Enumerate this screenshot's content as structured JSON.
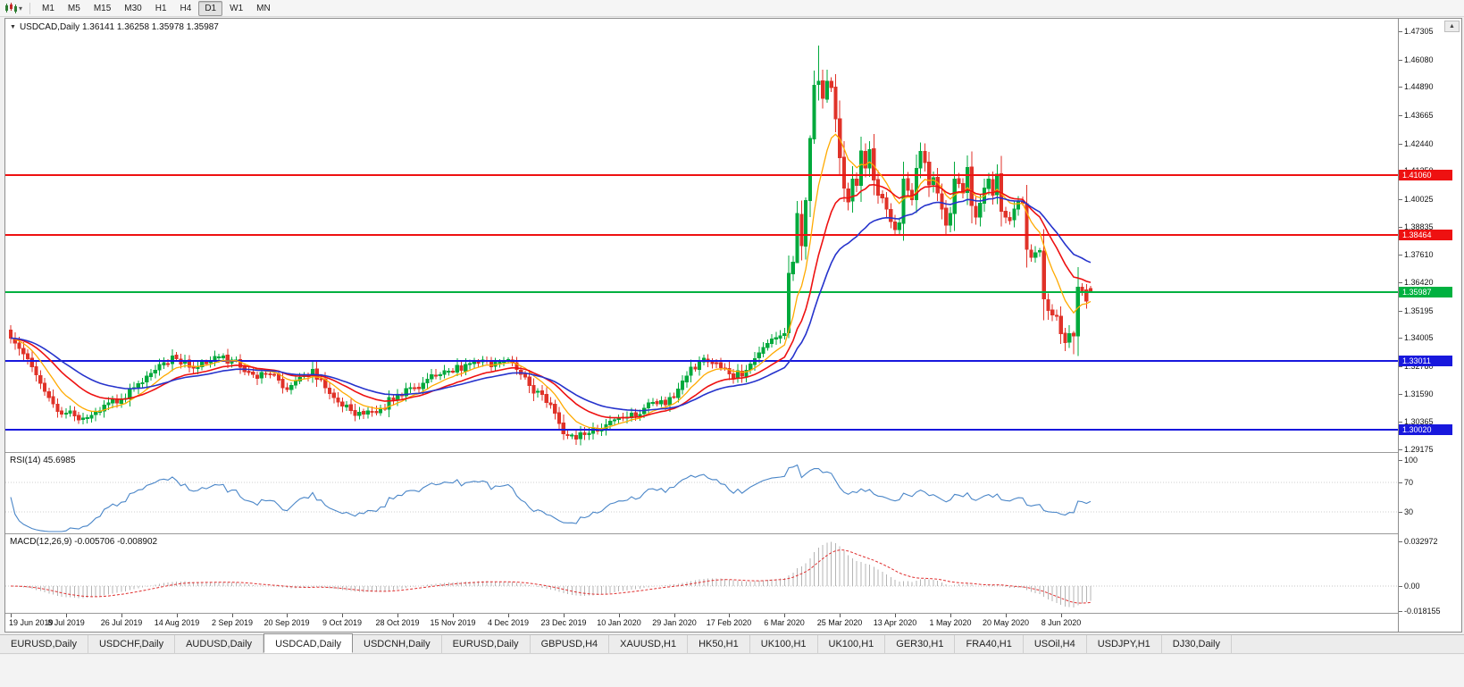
{
  "toolbar": {
    "timeframes": [
      "M1",
      "M5",
      "M15",
      "M30",
      "H1",
      "H4",
      "D1",
      "W1",
      "MN"
    ],
    "active_timeframe": "D1"
  },
  "chart_header": {
    "title": "USDCAD,Daily 1.36141 1.36258 1.35978 1.35987"
  },
  "indicators": {
    "rsi_label": "RSI(14) 45.6985",
    "macd_label": "MACD(12,26,9) -0.005706 -0.008902"
  },
  "scroll_up_glyph": "▲",
  "title_triangle_glyph": "▼",
  "caret_glyph": "▾",
  "tabs": {
    "items": [
      "EURUSD,Daily",
      "USDCHF,Daily",
      "AUDUSD,Daily",
      "USDCAD,Daily",
      "USDCNH,Daily",
      "EURUSD,Daily",
      "GBPUSD,H4",
      "XAUUSD,H1",
      "HK50,H1",
      "UK100,H1",
      "UK100,H1",
      "GER30,H1",
      "FRA40,H1",
      "USOil,H4",
      "USDJPY,H1",
      "DJ30,Daily"
    ],
    "active_index": 3
  },
  "chart_data": {
    "type": "candlestick",
    "symbol": "USDCAD",
    "timeframe": "Daily",
    "last_bar": {
      "open": 1.36141,
      "high": 1.36258,
      "low": 1.35978,
      "close": 1.35987
    },
    "bar_count": 255,
    "bars_per_label": 13,
    "candle_up_color": "#00a93c",
    "candle_down_color": "#e03228",
    "price_axis": {
      "top": 1.47305,
      "bottom": 1.29175,
      "ticks": [
        "1.47305",
        "1.46080",
        "1.44890",
        "1.43665",
        "1.42440",
        "1.41250",
        "1.40025",
        "1.38835",
        "1.37610",
        "1.36420",
        "1.35195",
        "1.34005",
        "1.32780",
        "1.31590",
        "1.30365",
        "1.29175"
      ]
    },
    "time_axis": [
      "19 Jun 2019",
      "8 Jul 2019",
      "26 Jul 2019",
      "14 Aug 2019",
      "2 Sep 2019",
      "20 Sep 2019",
      "9 Oct 2019",
      "28 Oct 2019",
      "15 Nov 2019",
      "4 Dec 2019",
      "23 Dec 2019",
      "10 Jan 2020",
      "29 Jan 2020",
      "17 Feb 2020",
      "6 Mar 2020",
      "25 Mar 2020",
      "13 Apr 2020",
      "1 May 2020",
      "20 May 2020",
      "8 Jun 2020"
    ],
    "levels": [
      {
        "price": 1.4106,
        "label": "1.41060",
        "color": "#ee1111",
        "role": "resistance"
      },
      {
        "price": 1.38464,
        "label": "1.38464",
        "color": "#ee1111",
        "role": "resistance"
      },
      {
        "price": 1.35987,
        "label": "1.35987",
        "color": "#00b140",
        "role": "current-price"
      },
      {
        "price": 1.33011,
        "label": "1.33011",
        "color": "#1818dd",
        "role": "support"
      },
      {
        "price": 1.3002,
        "label": "1.30020",
        "color": "#1818dd",
        "role": "support"
      }
    ],
    "moving_averages": [
      {
        "period": 9,
        "color": "#ffaa00",
        "width": 1.3
      },
      {
        "period": 20,
        "color": "#ee1111",
        "width": 1.6
      },
      {
        "period": 34,
        "color": "#2633cc",
        "width": 1.6
      }
    ],
    "rsi": {
      "period": 14,
      "value": 45.6985,
      "color": "#4a86c8",
      "axis_ticks": [
        "100",
        "70",
        "30"
      ],
      "level_lines": [
        70,
        30
      ]
    },
    "macd": {
      "fast": 12,
      "slow": 26,
      "signal": 9,
      "value": -0.005706,
      "signal_value": -0.008902,
      "axis_ticks": [
        "0.032972",
        "0.00",
        "-0.018155"
      ],
      "hist_color": "#b4b4b4",
      "signal_color": "#e03030"
    },
    "close_waypoints": [
      [
        0,
        1.34
      ],
      [
        2,
        1.3355
      ],
      [
        4,
        1.331
      ],
      [
        6,
        1.324
      ],
      [
        8,
        1.317
      ],
      [
        10,
        1.3115
      ],
      [
        13,
        1.3075
      ],
      [
        16,
        1.3045
      ],
      [
        19,
        1.3065
      ],
      [
        22,
        1.311
      ],
      [
        26,
        1.3135
      ],
      [
        29,
        1.3185
      ],
      [
        32,
        1.3235
      ],
      [
        35,
        1.3285
      ],
      [
        39,
        1.331
      ],
      [
        42,
        1.3275
      ],
      [
        45,
        1.3295
      ],
      [
        48,
        1.332
      ],
      [
        52,
        1.3305
      ],
      [
        55,
        1.3255
      ],
      [
        58,
        1.3225
      ],
      [
        61,
        1.3245
      ],
      [
        64,
        1.3185
      ],
      [
        68,
        1.323
      ],
      [
        71,
        1.3265
      ],
      [
        74,
        1.3185
      ],
      [
        78,
        1.3105
      ],
      [
        81,
        1.3065
      ],
      [
        84,
        1.3085
      ],
      [
        87,
        1.3095
      ],
      [
        91,
        1.3155
      ],
      [
        94,
        1.3185
      ],
      [
        97,
        1.3205
      ],
      [
        100,
        1.3235
      ],
      [
        104,
        1.3255
      ],
      [
        107,
        1.3285
      ],
      [
        110,
        1.3295
      ],
      [
        113,
        1.3275
      ],
      [
        116,
        1.33
      ],
      [
        119,
        1.3265
      ],
      [
        122,
        1.3195
      ],
      [
        125,
        1.3155
      ],
      [
        128,
        1.3075
      ],
      [
        130,
        1.2985
      ],
      [
        133,
        1.2962
      ],
      [
        136,
        1.2988
      ],
      [
        139,
        1.3005
      ],
      [
        143,
        1.3055
      ],
      [
        146,
        1.3075
      ],
      [
        149,
        1.3095
      ],
      [
        152,
        1.3115
      ],
      [
        156,
        1.3145
      ],
      [
        159,
        1.3235
      ],
      [
        162,
        1.3295
      ],
      [
        165,
        1.329
      ],
      [
        169,
        1.3245
      ],
      [
        172,
        1.3235
      ],
      [
        175,
        1.331
      ],
      [
        177,
        1.336
      ],
      [
        179,
        1.3395
      ],
      [
        181,
        1.341
      ],
      [
        182,
        1.342
      ],
      [
        183,
        1.368
      ],
      [
        184,
        1.373
      ],
      [
        185,
        1.394
      ],
      [
        186,
        1.38
      ],
      [
        187,
        1.3997
      ],
      [
        188,
        1.4265
      ],
      [
        189,
        1.4496
      ],
      [
        190,
        1.4513
      ],
      [
        191,
        1.444
      ],
      [
        192,
        1.4514
      ],
      [
        193,
        1.4486
      ],
      [
        194,
        1.435
      ],
      [
        195,
        1.4182
      ],
      [
        196,
        1.405
      ],
      [
        197,
        1.399
      ],
      [
        198,
        1.409
      ],
      [
        199,
        1.4062
      ],
      [
        200,
        1.4212
      ],
      [
        201,
        1.4138
      ],
      [
        202,
        1.4218
      ],
      [
        203,
        1.4085
      ],
      [
        204,
        1.402
      ],
      [
        205,
        1.4008
      ],
      [
        206,
        1.396
      ],
      [
        207,
        1.3905
      ],
      [
        208,
        1.387
      ],
      [
        209,
        1.39
      ],
      [
        210,
        1.409
      ],
      [
        211,
        1.404
      ],
      [
        212,
        1.4
      ],
      [
        213,
        1.4135
      ],
      [
        214,
        1.421
      ],
      [
        215,
        1.416
      ],
      [
        216,
        1.4065
      ],
      [
        217,
        1.4095
      ],
      [
        218,
        1.403
      ],
      [
        219,
        1.396
      ],
      [
        220,
        1.389
      ],
      [
        221,
        1.394
      ],
      [
        222,
        1.409
      ],
      [
        223,
        1.407
      ],
      [
        224,
        1.403
      ],
      [
        225,
        1.414
      ],
      [
        226,
        1.3975
      ],
      [
        227,
        1.3925
      ],
      [
        228,
        1.3985
      ],
      [
        229,
        1.405
      ],
      [
        230,
        1.409
      ],
      [
        231,
        1.402
      ],
      [
        232,
        1.411
      ],
      [
        233,
        1.395
      ],
      [
        234,
        1.3925
      ],
      [
        235,
        1.391
      ],
      [
        236,
        1.396
      ],
      [
        237,
        1.399
      ],
      [
        238,
        1.3985
      ],
      [
        239,
        1.3785
      ],
      [
        240,
        1.375
      ],
      [
        241,
        1.377
      ],
      [
        242,
        1.378
      ],
      [
        243,
        1.357
      ],
      [
        244,
        1.352
      ],
      [
        245,
        1.35
      ],
      [
        246,
        1.3495
      ],
      [
        247,
        1.342
      ],
      [
        248,
        1.338
      ],
      [
        249,
        1.342
      ],
      [
        250,
        1.341
      ],
      [
        251,
        1.362
      ],
      [
        252,
        1.3605
      ],
      [
        253,
        1.356
      ],
      [
        254,
        1.35987
      ]
    ],
    "wick_overrides": {
      "183": [
        1.3758,
        1.34
      ],
      "185": [
        1.3995,
        1.3727
      ],
      "187": [
        1.401,
        1.374
      ],
      "188": [
        1.4279,
        1.3925
      ],
      "189": [
        1.456,
        1.4243
      ],
      "190": [
        1.4668,
        1.443
      ],
      "192": [
        1.4564,
        1.442
      ],
      "250": [
        1.343,
        1.333
      ],
      "254": [
        1.36258,
        1.35978
      ]
    }
  }
}
